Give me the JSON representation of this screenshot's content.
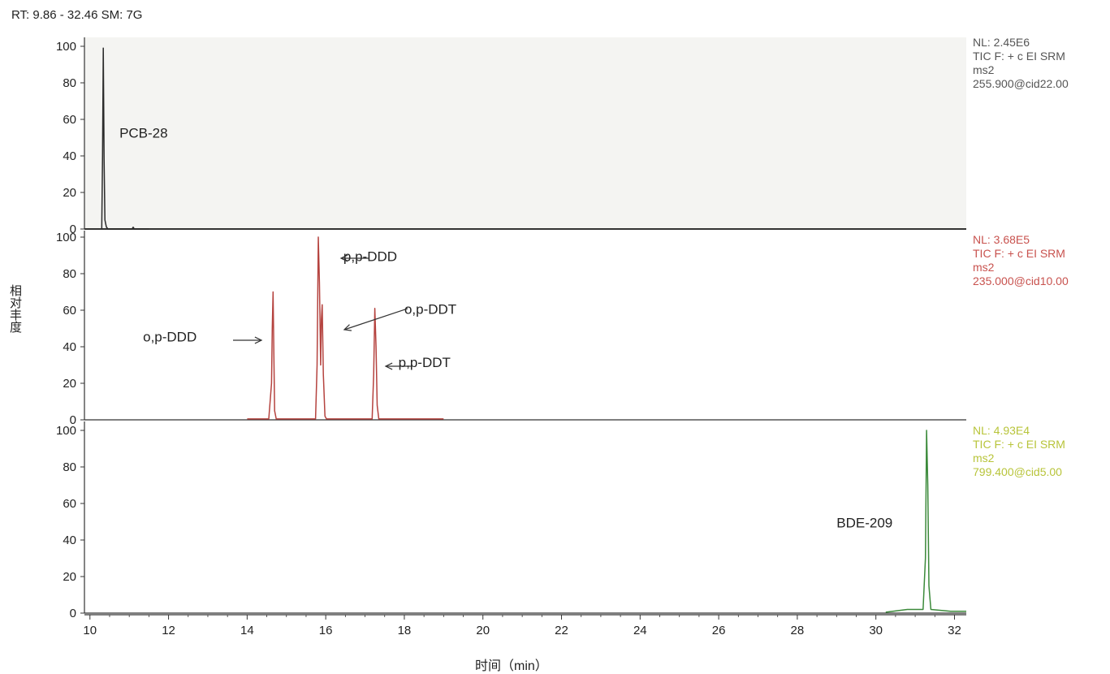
{
  "header": "RT: 9.86 - 32.46 SM: 7G",
  "chart_data": {
    "type": "line",
    "xlabel": "时间（min）",
    "ylabel": "相对丰度",
    "xlim": [
      9.86,
      32.3
    ],
    "x_ticks": [
      10,
      12,
      14,
      16,
      18,
      20,
      22,
      24,
      26,
      28,
      30,
      32
    ],
    "y_ticks": [
      0,
      20,
      40,
      60,
      80,
      100
    ],
    "panels": [
      {
        "id": "pcb",
        "color": "#2b2b2b",
        "background": "#f4f4f2",
        "info": [
          "NL: 2.45E6",
          "TIC F: + c EI SRM",
          "ms2",
          "255.900@cid22.00"
        ],
        "points": [
          [
            10.3,
            0
          ],
          [
            10.32,
            40
          ],
          [
            10.34,
            99
          ],
          [
            10.36,
            38
          ],
          [
            10.38,
            5
          ],
          [
            10.4,
            3
          ],
          [
            10.42,
            1
          ],
          [
            10.46,
            0
          ],
          [
            11.07,
            0
          ],
          [
            11.1,
            1
          ],
          [
            11.13,
            0
          ],
          [
            11.5,
            0
          ]
        ],
        "annotations": [
          {
            "label": "PCB-28",
            "x": 10.75,
            "y": 50
          }
        ]
      },
      {
        "id": "ddx",
        "color": "#b5433f",
        "background": "#ffffff",
        "info": [
          "NL: 3.68E5",
          "TIC F: + c EI SRM",
          "ms2",
          "235.000@cid10.00"
        ],
        "points": [
          [
            14.0,
            0.5
          ],
          [
            14.55,
            0.5
          ],
          [
            14.62,
            20
          ],
          [
            14.64,
            50
          ],
          [
            14.66,
            70
          ],
          [
            14.68,
            35
          ],
          [
            14.7,
            5
          ],
          [
            14.74,
            0.5
          ],
          [
            15.74,
            0.5
          ],
          [
            15.78,
            30
          ],
          [
            15.81,
            100
          ],
          [
            15.84,
            75
          ],
          [
            15.87,
            30
          ],
          [
            15.89,
            55
          ],
          [
            15.91,
            63
          ],
          [
            15.94,
            25
          ],
          [
            15.98,
            2
          ],
          [
            16.02,
            0.5
          ],
          [
            17.18,
            0.5
          ],
          [
            17.22,
            25
          ],
          [
            17.25,
            61
          ],
          [
            17.28,
            40
          ],
          [
            17.31,
            8
          ],
          [
            17.35,
            0.5
          ],
          [
            19.0,
            0.5
          ]
        ],
        "annotations": [
          {
            "label": "p,p-DDD",
            "x": 16.45,
            "y": 87
          },
          {
            "label": "o,p-DDT",
            "x": 18.0,
            "y": 58
          },
          {
            "label": "o,p-DDD",
            "x": 11.35,
            "y": 43
          },
          {
            "label": "p,p-DDT",
            "x": 17.85,
            "y": 29
          }
        ]
      },
      {
        "id": "bde",
        "color": "#3b8a3a",
        "background": "#ffffff",
        "info": [
          "NL: 4.93E4",
          "TIC F: + c EI SRM",
          "ms2",
          "799.400@cid5.00"
        ],
        "points": [
          [
            30.25,
            0.5
          ],
          [
            30.8,
            2
          ],
          [
            31.1,
            2
          ],
          [
            31.2,
            2
          ],
          [
            31.26,
            30
          ],
          [
            31.29,
            100
          ],
          [
            31.32,
            70
          ],
          [
            31.35,
            15
          ],
          [
            31.4,
            2
          ],
          [
            31.9,
            1
          ],
          [
            32.3,
            1
          ]
        ],
        "annotations": [
          {
            "label": "BDE-209",
            "x": 29.0,
            "y": 47
          }
        ]
      }
    ]
  },
  "colors": {
    "axis": "#333333",
    "info_pcb": "#555555",
    "info_ddx": "#c8524e",
    "info_bde": "#b8c43a"
  }
}
